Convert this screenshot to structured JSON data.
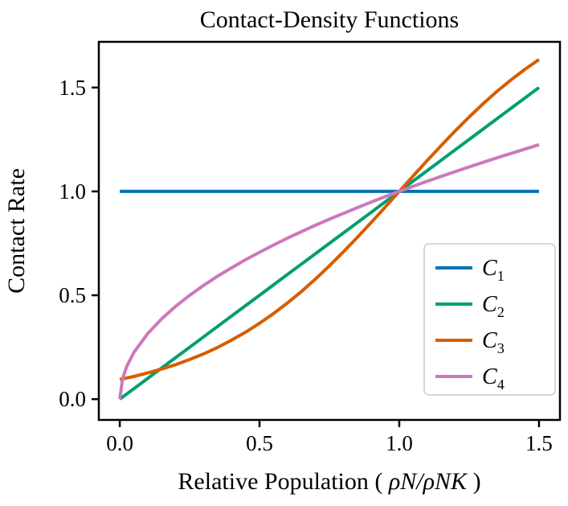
{
  "figure": {
    "background": "#ffffff"
  },
  "chart_data": {
    "type": "line",
    "title": "Contact-Density Functions",
    "xlabel": "Relative Population ( ρN/ρNK )",
    "ylabel": "Contact Rate",
    "xlim": [
      -0.075,
      1.575
    ],
    "ylim": [
      -0.1,
      1.72
    ],
    "xticks": [
      0,
      0.5,
      1.0,
      1.5
    ],
    "xtick_labels": [
      "0.0",
      "0.5",
      "1.0",
      "1.5"
    ],
    "yticks": [
      0,
      0.5,
      1.0,
      1.5
    ],
    "ytick_labels": [
      "0.0",
      "0.5",
      "1.0",
      "1.5"
    ],
    "grid": false,
    "legend": {
      "position": "lower right",
      "border_color": "#cccccc",
      "background": "#ffffff"
    },
    "x": [
      0,
      0.01,
      0.025,
      0.05,
      0.1,
      0.15,
      0.2,
      0.25,
      0.3,
      0.35,
      0.4,
      0.45,
      0.5,
      0.55,
      0.6,
      0.65,
      0.7,
      0.75,
      0.8,
      0.85,
      0.9,
      0.95,
      1.0,
      1.05,
      1.1,
      1.15,
      1.2,
      1.25,
      1.3,
      1.35,
      1.4,
      1.45,
      1.5
    ],
    "series": [
      {
        "name": "C",
        "subscript": "1",
        "color": "#0173b2",
        "description": "constant contact rate",
        "values": [
          1,
          1,
          1,
          1,
          1,
          1,
          1,
          1,
          1,
          1,
          1,
          1,
          1,
          1,
          1,
          1,
          1,
          1,
          1,
          1,
          1,
          1,
          1,
          1,
          1,
          1,
          1,
          1,
          1,
          1,
          1,
          1,
          1
        ]
      },
      {
        "name": "C",
        "subscript": "2",
        "color": "#029e73",
        "description": "linear contact rate",
        "values": [
          0,
          0.01,
          0.025,
          0.05,
          0.1,
          0.15,
          0.2,
          0.25,
          0.3,
          0.35,
          0.4,
          0.45,
          0.5,
          0.55,
          0.6,
          0.65,
          0.7,
          0.75,
          0.8,
          0.85,
          0.9,
          0.95,
          1.0,
          1.05,
          1.1,
          1.15,
          1.2,
          1.25,
          1.3,
          1.35,
          1.4,
          1.45,
          1.5
        ]
      },
      {
        "name": "C",
        "subscript": "3",
        "color": "#d55e00",
        "description": "sigmoid contact rate",
        "values": [
          0.095,
          0.098,
          0.102,
          0.109,
          0.126,
          0.145,
          0.166,
          0.191,
          0.218,
          0.249,
          0.284,
          0.322,
          0.365,
          0.412,
          0.463,
          0.518,
          0.578,
          0.642,
          0.709,
          0.779,
          0.851,
          0.925,
          1.0,
          1.075,
          1.149,
          1.221,
          1.291,
          1.358,
          1.422,
          1.482,
          1.537,
          1.588,
          1.635
        ]
      },
      {
        "name": "C",
        "subscript": "4",
        "color": "#cc78bc",
        "description": "saturating (square-root) contact rate",
        "values": [
          0,
          0.1,
          0.158,
          0.224,
          0.316,
          0.387,
          0.447,
          0.5,
          0.548,
          0.592,
          0.632,
          0.671,
          0.707,
          0.742,
          0.775,
          0.806,
          0.837,
          0.866,
          0.894,
          0.922,
          0.949,
          0.975,
          1.0,
          1.025,
          1.049,
          1.072,
          1.095,
          1.118,
          1.14,
          1.162,
          1.183,
          1.204,
          1.225
        ]
      }
    ]
  }
}
